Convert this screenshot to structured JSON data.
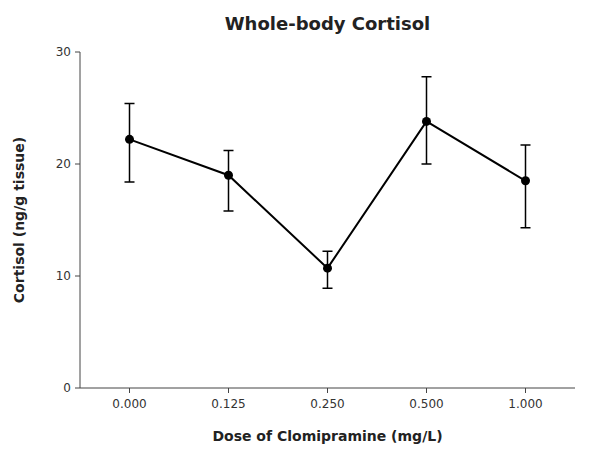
{
  "chart_data": {
    "type": "line",
    "title": "Whole-body Cortisol",
    "x_label": "Dose of Clomipramine (mg/L)",
    "y_label": "Cortisol (ng/g tissue)",
    "categories": [
      "0.000",
      "0.125",
      "0.250",
      "0.500",
      "1.000"
    ],
    "values": [
      22.2,
      19.0,
      10.7,
      23.8,
      18.5
    ],
    "error_upper": [
      3.2,
      2.2,
      1.5,
      4.0,
      3.2
    ],
    "error_lower": [
      3.8,
      3.2,
      1.8,
      3.8,
      4.2
    ],
    "ylim": [
      0,
      30
    ],
    "yticks": [
      0,
      10,
      20,
      30
    ],
    "color": "#000000",
    "marker": "circle",
    "line_style": "solid",
    "grid": false
  }
}
